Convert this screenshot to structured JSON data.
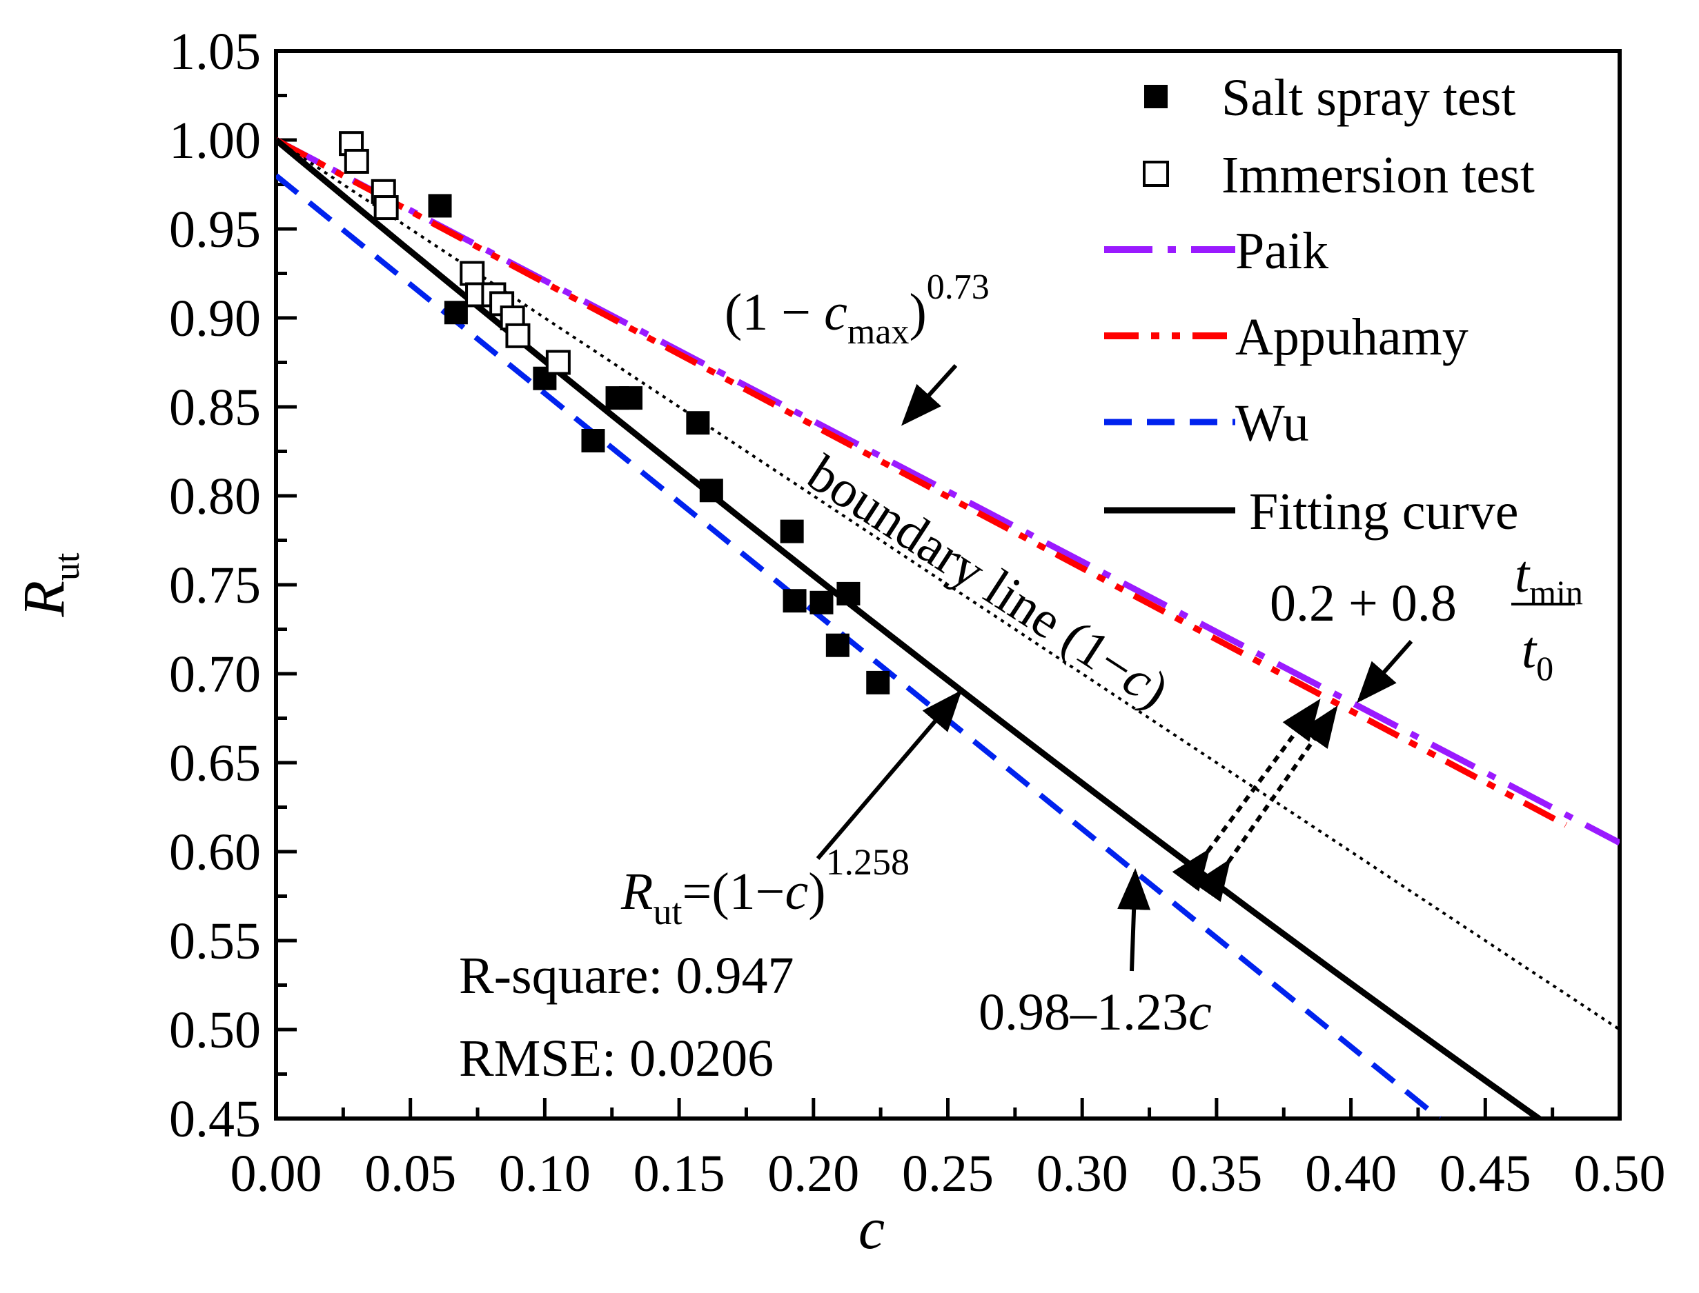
{
  "chart_data": {
    "type": "scatter",
    "xlabel": "c",
    "ylabel": {
      "main": "R",
      "sub": "ut"
    },
    "xlim": [
      0.0,
      0.5
    ],
    "ylim": [
      0.45,
      1.05
    ],
    "xticks": [
      "0.00",
      "0.05",
      "0.10",
      "0.15",
      "0.20",
      "0.25",
      "0.30",
      "0.35",
      "0.40",
      "0.45",
      "0.50"
    ],
    "yticks": [
      "0.45",
      "0.50",
      "0.55",
      "0.60",
      "0.65",
      "0.70",
      "0.75",
      "0.80",
      "0.85",
      "0.90",
      "0.95",
      "1.00",
      "1.05"
    ],
    "series": [
      {
        "name": "Salt spray test",
        "kind": "points",
        "marker": "filled-square",
        "color": "#000000",
        "x": [
          0.061,
          0.067,
          0.1,
          0.118,
          0.127,
          0.132,
          0.157,
          0.162,
          0.192,
          0.193,
          0.203,
          0.209,
          0.213,
          0.224
        ],
        "y": [
          0.963,
          0.903,
          0.866,
          0.831,
          0.855,
          0.855,
          0.841,
          0.803,
          0.78,
          0.741,
          0.74,
          0.716,
          0.745,
          0.695
        ]
      },
      {
        "name": "Immersion test",
        "kind": "points",
        "marker": "open-square",
        "color": "#000000",
        "x": [
          0.028,
          0.03,
          0.04,
          0.041,
          0.073,
          0.075,
          0.081,
          0.084,
          0.088,
          0.09,
          0.105
        ],
        "y": [
          0.998,
          0.988,
          0.971,
          0.962,
          0.925,
          0.913,
          0.913,
          0.908,
          0.9,
          0.89,
          0.875
        ]
      },
      {
        "name": "Paik",
        "kind": "line",
        "style": "dash-dot",
        "color": "#9a1aff",
        "x": [
          0.0,
          0.5
        ],
        "y": [
          1.0,
          0.605
        ]
      },
      {
        "name": "Appuhamy",
        "kind": "line",
        "style": "dash-dot-dot",
        "color": "#ff0000",
        "x": [
          0.0,
          0.48
        ],
        "y": [
          1.0,
          0.615
        ]
      },
      {
        "name": "Wu",
        "kind": "line",
        "style": "dashed",
        "color": "#0022ee",
        "x": [
          0.0,
          0.433
        ],
        "y": [
          0.98,
          0.45
        ]
      },
      {
        "name": "Fitting curve",
        "kind": "power",
        "style": "solid",
        "color": "#000000",
        "exponent": 1.258,
        "x_range": [
          0.0,
          0.472
        ]
      },
      {
        "name": "boundary line",
        "kind": "line",
        "style": "dotted",
        "color": "#000000",
        "x": [
          0.0,
          0.5
        ],
        "y": [
          1.0,
          0.5
        ],
        "in_legend": false
      }
    ],
    "legend": {
      "position": "top-right",
      "entries": [
        "Salt spray test",
        "Immersion test",
        "Paik",
        "Appuhamy",
        "Wu",
        "Fitting curve"
      ]
    },
    "annotations": {
      "cmax_formula": {
        "base": "(1 − ",
        "var": "c",
        "sub": "max",
        "close": ")",
        "sup": "0.73"
      },
      "boundary": {
        "prefix": "boundary line (1−",
        "var": "c",
        "suffix": ")"
      },
      "tmin_formula": {
        "lead": "0.2 + 0.8",
        "num_var": "t",
        "num_sub": "min",
        "den_var": "t",
        "den_sub": "0"
      },
      "fit_formula": {
        "var": "R",
        "sub": "ut",
        "eq": "=(1−",
        "var2": "c",
        "close": ")",
        "sup": "1.258"
      },
      "wu_formula": {
        "text": "0.98–1.23",
        "var": "c"
      },
      "r_square": "R-square: 0.947",
      "rmse": "RMSE: 0.0206"
    }
  }
}
